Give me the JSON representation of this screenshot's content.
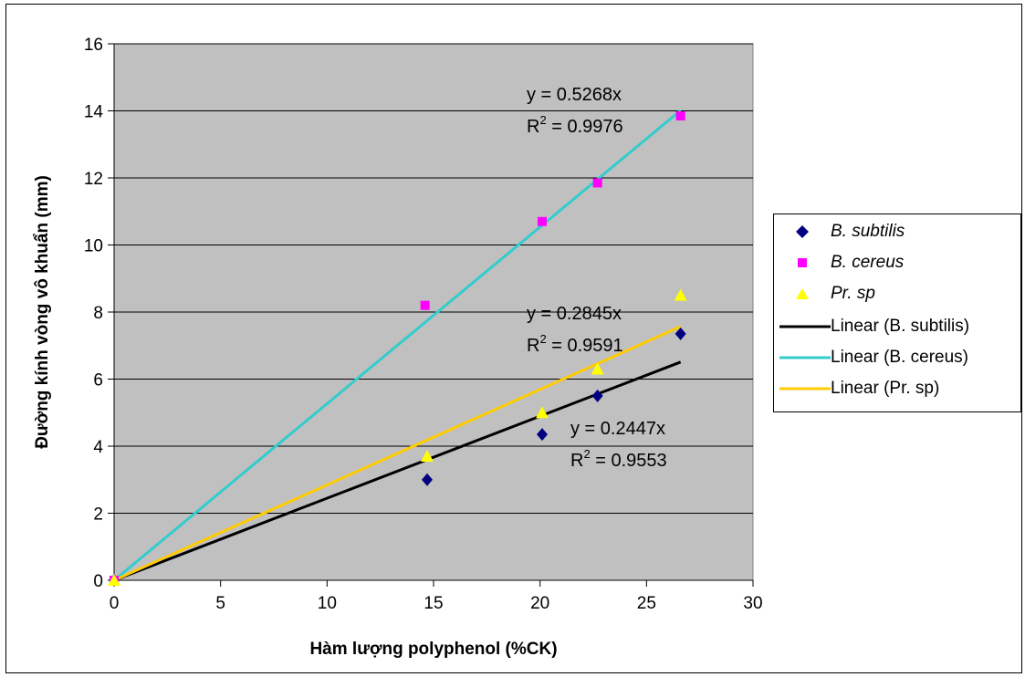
{
  "chart_data": {
    "type": "scatter",
    "title": "",
    "xlabel": "Hàm lượng polyphenol (%CK)",
    "ylabel": "Đường kính vòng vô khuẩn (mm)",
    "xlim": [
      0,
      30
    ],
    "ylim": [
      0,
      16
    ],
    "x_ticks": [
      0,
      5,
      10,
      15,
      20,
      25,
      30
    ],
    "y_ticks": [
      0,
      2,
      4,
      6,
      8,
      10,
      12,
      14,
      16
    ],
    "grid": "horizontal",
    "plot_background": "#c0c0c0",
    "legend_position": "right",
    "series": [
      {
        "name": "B. subtilis",
        "marker": "diamond",
        "color": "#000080",
        "points": [
          [
            0,
            0
          ],
          [
            14.7,
            3.0
          ],
          [
            20.1,
            4.35
          ],
          [
            22.7,
            5.5
          ],
          [
            26.6,
            7.35
          ]
        ]
      },
      {
        "name": "B. cereus",
        "marker": "square",
        "color": "#ff00ff",
        "points": [
          [
            0,
            0
          ],
          [
            14.6,
            8.2
          ],
          [
            20.1,
            10.7
          ],
          [
            22.7,
            11.85
          ],
          [
            26.6,
            13.85
          ]
        ]
      },
      {
        "name": "Pr. sp",
        "marker": "triangle",
        "color": "#ffff00",
        "points": [
          [
            0,
            0
          ],
          [
            14.7,
            3.7
          ],
          [
            20.1,
            5.0
          ],
          [
            22.7,
            6.3
          ],
          [
            26.6,
            8.5
          ]
        ]
      }
    ],
    "trendlines": [
      {
        "name": "Linear (B. subtilis)",
        "slope": 0.2447,
        "x_range": [
          0,
          26.6
        ],
        "color": "#000000",
        "equation": "y = 0.2447x",
        "r2_prefix": "R",
        "r2_sup": "2",
        "r2_value": " = 0.9553"
      },
      {
        "name": "Linear (B. cereus)",
        "slope": 0.5268,
        "x_range": [
          0,
          26.6
        ],
        "color": "#33cccc",
        "equation": "y = 0.5268x",
        "r2_prefix": "R",
        "r2_sup": "2",
        "r2_value": " = 0.9976"
      },
      {
        "name": "Linear (Pr. sp)",
        "slope": 0.2845,
        "x_range": [
          0,
          26.6
        ],
        "color": "#ffcc00",
        "equation": "y = 0.2845x",
        "r2_prefix": "R",
        "r2_sup": "2",
        "r2_value": " = 0.9591"
      }
    ]
  }
}
